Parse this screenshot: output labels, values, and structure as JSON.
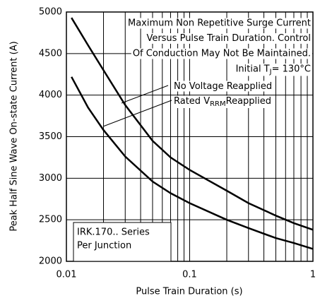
{
  "chart_data": {
    "type": "line",
    "x_label": "Pulse Train Duration (s)",
    "y_label": "Peak Half Sine Wave On-state Current (A)",
    "annotations": [
      "Maximum Non Repetitive Surge Current",
      "Versus Pulse Train Duration. Control",
      "Of Conduction May Not Be Maintained."
    ],
    "condition": [
      "Initial T",
      "J",
      "= 130°C"
    ],
    "note": [
      "IRK.170.. Series",
      "Per Junction"
    ],
    "x": [
      0.011,
      0.015,
      0.02,
      0.03,
      0.05,
      0.07,
      0.1,
      0.2,
      0.3,
      0.5,
      0.7,
      1
    ],
    "series": [
      {
        "name": [
          "No Voltage Reapplied"
        ],
        "color": "#000000",
        "values": [
          4930,
          4600,
          4300,
          3880,
          3450,
          3250,
          3100,
          2850,
          2700,
          2550,
          2460,
          2380
        ]
      },
      {
        "name": [
          "Rated V",
          "RRM",
          "Reapplied"
        ],
        "color": "#000000",
        "values": [
          4220,
          3850,
          3580,
          3260,
          2960,
          2820,
          2700,
          2500,
          2400,
          2280,
          2220,
          2150
        ]
      }
    ],
    "xlog": true,
    "xlim": [
      0.01,
      1
    ],
    "xticks": [
      0.01,
      0.1,
      1
    ],
    "xminorticks": [
      0.02,
      0.03,
      0.04,
      0.05,
      0.06,
      0.07,
      0.08,
      0.09,
      0.2,
      0.3,
      0.4,
      0.5,
      0.6,
      0.7,
      0.8,
      0.9
    ],
    "ylim": [
      2000,
      5000
    ],
    "yticks": [
      2000,
      2500,
      3000,
      3500,
      4000,
      4500,
      5000
    ],
    "grid": true
  }
}
